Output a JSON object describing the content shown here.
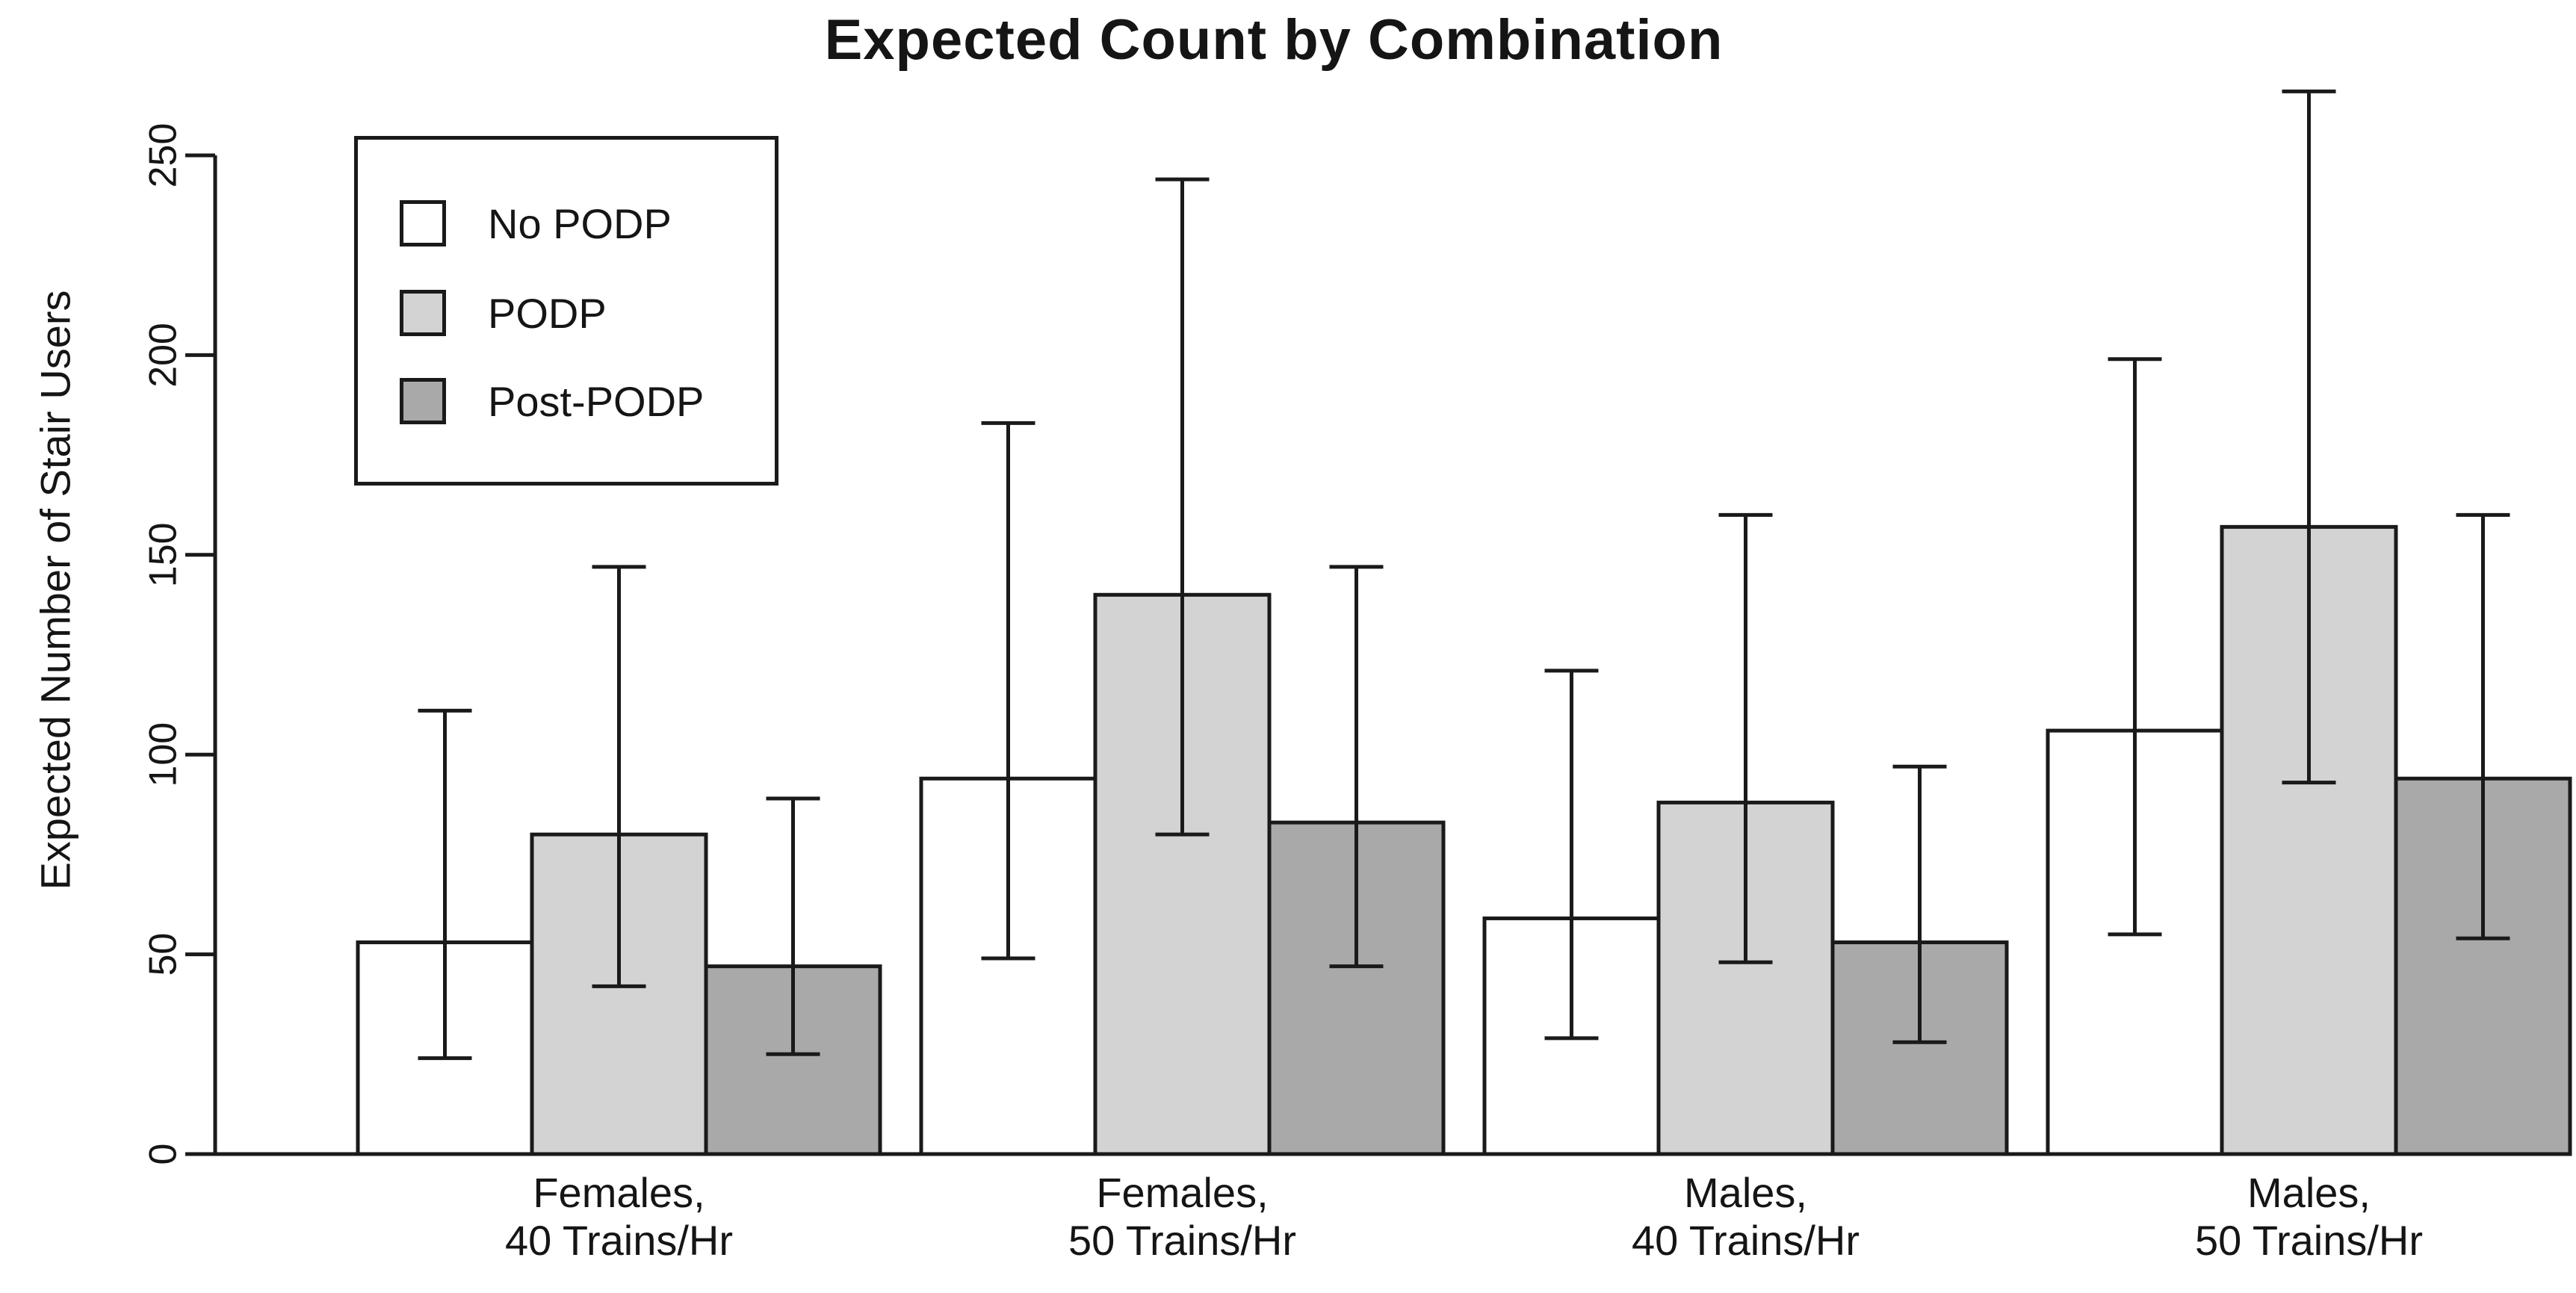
{
  "figure": {
    "background": "#ffffff",
    "stroke_color": "#1a1a1a"
  },
  "chart_data": {
    "type": "bar",
    "title": "Expected Count by Combination",
    "xlabel": "",
    "ylabel": "Expected Number of Stair Users",
    "ylim": [
      0,
      250
    ],
    "yticks": [
      0,
      50,
      100,
      150,
      200,
      250
    ],
    "grid": false,
    "error_bars": true,
    "legend_position": "top-left",
    "categories": [
      {
        "line1": "Females,",
        "line2": "40 Trains/Hr"
      },
      {
        "line1": "Females,",
        "line2": "50 Trains/Hr"
      },
      {
        "line1": "Males,",
        "line2": "40 Trains/Hr"
      },
      {
        "line1": "Males,",
        "line2": "50 Trains/Hr"
      }
    ],
    "series": [
      {
        "name": "No PODP",
        "fill": "#ffffff",
        "values": [
          53,
          94,
          59,
          106
        ],
        "err_low": [
          24,
          49,
          29,
          55
        ],
        "err_high": [
          111,
          183,
          121,
          199
        ]
      },
      {
        "name": "PODP",
        "fill": "#d3d3d3",
        "values": [
          80,
          140,
          88,
          157
        ],
        "err_low": [
          42,
          80,
          48,
          93
        ],
        "err_high": [
          147,
          244,
          160,
          266
        ]
      },
      {
        "name": "Post-PODP",
        "fill": "#a9a9a9",
        "values": [
          47,
          83,
          53,
          94
        ],
        "err_low": [
          25,
          47,
          28,
          54
        ],
        "err_high": [
          89,
          147,
          97,
          160
        ]
      }
    ]
  }
}
